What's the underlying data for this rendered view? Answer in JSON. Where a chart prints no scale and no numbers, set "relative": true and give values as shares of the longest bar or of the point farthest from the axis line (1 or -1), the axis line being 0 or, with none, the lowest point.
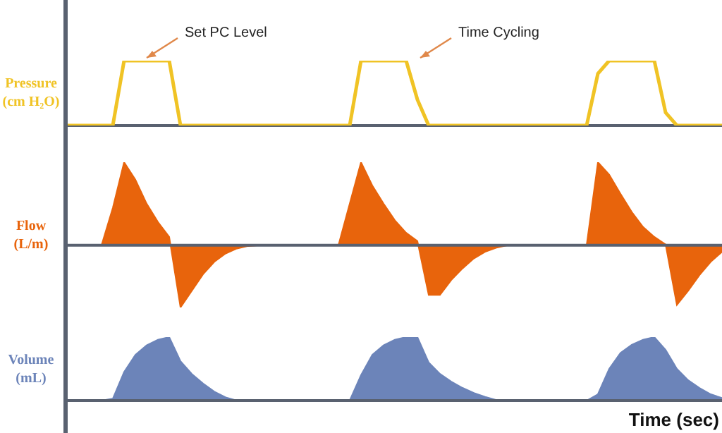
{
  "chart_data": [
    {
      "type": "line",
      "relative": true,
      "ylabel": "Pressure\n(cm H₂O)",
      "annotations": [
        "Set PC Level",
        "Time Cycling"
      ],
      "categories": [
        null,
        null,
        null,
        null,
        null,
        null,
        null,
        null,
        null,
        null,
        null,
        null,
        null,
        null,
        null,
        null,
        null,
        null,
        null,
        null,
        null,
        null,
        null,
        null,
        null,
        null,
        null,
        null,
        null,
        null,
        null,
        null,
        null,
        null,
        null,
        null,
        null,
        null,
        null,
        null,
        null,
        null,
        null,
        null,
        null,
        null,
        null,
        null,
        null,
        null,
        null,
        null,
        null,
        null,
        null,
        null,
        null,
        null,
        null
      ],
      "series": [
        {
          "color": "#f0c325",
          "values": [
            0,
            0,
            0,
            0,
            0,
            1,
            1,
            1,
            1,
            1,
            0,
            0,
            0,
            0,
            0,
            0,
            0,
            0,
            0,
            0,
            0,
            0,
            0,
            0,
            0,
            0,
            1,
            1,
            1,
            1,
            1,
            0.4,
            0,
            0,
            0,
            0,
            0,
            0,
            0,
            0,
            0,
            0,
            0,
            0,
            0,
            0,
            0,
            0.8,
            1,
            1,
            1,
            1,
            1,
            0.2,
            0,
            0,
            0,
            0,
            0
          ]
        }
      ]
    },
    {
      "type": "area",
      "relative": true,
      "ylabel": "Flow\n(L/m)",
      "categories": [
        null,
        null,
        null,
        null,
        null,
        null,
        null,
        null,
        null,
        null,
        null,
        null,
        null,
        null,
        null,
        null,
        null,
        null,
        null,
        null,
        null,
        null,
        null,
        null,
        null,
        null,
        null,
        null,
        null,
        null,
        null,
        null,
        null,
        null,
        null,
        null,
        null,
        null,
        null,
        null,
        null,
        null,
        null,
        null,
        null,
        null,
        null,
        null,
        null,
        null,
        null,
        null,
        null,
        null,
        null,
        null,
        null,
        null,
        null
      ],
      "series": [
        {
          "color": "#e8640c",
          "values": [
            0,
            0,
            0,
            0,
            0.45,
            1,
            0.79,
            0.5,
            0.28,
            0.1,
            -0.75,
            -0.55,
            -0.35,
            -0.2,
            -0.1,
            -0.04,
            -0.01,
            0,
            0,
            0,
            0,
            0,
            0,
            0,
            0,
            0.5,
            1,
            0.72,
            0.5,
            0.3,
            0.15,
            0.05,
            -0.6,
            -0.6,
            -0.42,
            -0.28,
            -0.16,
            -0.08,
            -0.03,
            0,
            0,
            0,
            0,
            0,
            0,
            0,
            0,
            1,
            0.85,
            0.62,
            0.4,
            0.22,
            0.1,
            0.01,
            -0.72,
            -0.55,
            -0.36,
            -0.2,
            -0.08
          ]
        }
      ]
    },
    {
      "type": "area",
      "relative": true,
      "ylabel": "Volume\n(mL)",
      "xlabel": "Time (sec)",
      "categories": [
        null,
        null,
        null,
        null,
        null,
        null,
        null,
        null,
        null,
        null,
        null,
        null,
        null,
        null,
        null,
        null,
        null,
        null,
        null,
        null,
        null,
        null,
        null,
        null,
        null,
        null,
        null,
        null,
        null,
        null,
        null,
        null,
        null,
        null,
        null,
        null,
        null,
        null,
        null,
        null,
        null,
        null,
        null,
        null,
        null,
        null,
        null,
        null,
        null,
        null,
        null,
        null,
        null,
        null,
        null,
        null,
        null,
        null,
        null
      ],
      "series": [
        {
          "color": "#6c84b9",
          "values": [
            0,
            0,
            0,
            0,
            0.03,
            0.45,
            0.72,
            0.87,
            0.96,
            1,
            0.62,
            0.42,
            0.27,
            0.14,
            0.05,
            0,
            0,
            0,
            0,
            0,
            0,
            0,
            0,
            0,
            0,
            0,
            0.4,
            0.72,
            0.87,
            0.96,
            1,
            1,
            0.6,
            0.42,
            0.3,
            0.2,
            0.12,
            0.06,
            0.01,
            0,
            0,
            0,
            0,
            0,
            0,
            0,
            0,
            0.1,
            0.5,
            0.75,
            0.88,
            0.96,
            1,
            0.8,
            0.5,
            0.32,
            0.2,
            0.1,
            0.04
          ]
        }
      ]
    }
  ]
}
